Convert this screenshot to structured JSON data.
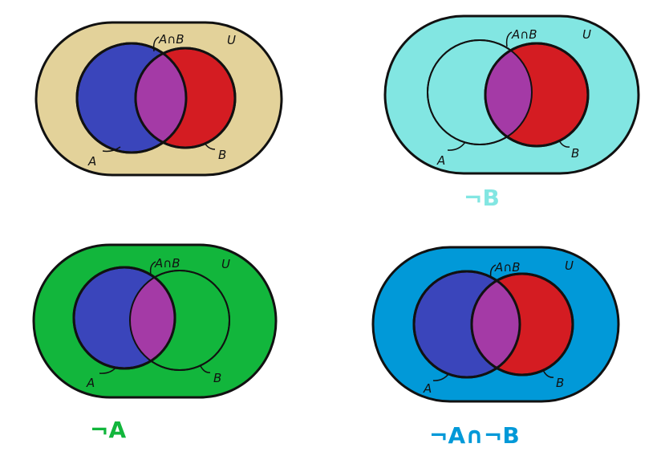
{
  "colors": {
    "universe_1": "#e3d29a",
    "universe_2": "#82e6e2",
    "universe_3": "#12b63c",
    "universe_4": "#0199d8",
    "set_a": "#3a45bb",
    "set_b": "#d41c22",
    "intersection": "#a43aa6",
    "caption_2": "#82e6e2",
    "caption_3": "#12b63c",
    "caption_4": "#0199d8"
  },
  "diagrams": [
    {
      "universe_label": "U",
      "a_label": "A",
      "b_label": "B",
      "intersection_label": "A∩B",
      "caption": ""
    },
    {
      "universe_label": "U",
      "a_label": "A",
      "b_label": "B",
      "intersection_label": "A∩B",
      "caption": "¬B"
    },
    {
      "universe_label": "U",
      "a_label": "A",
      "b_label": "B",
      "intersection_label": "A∩B",
      "caption": "¬A"
    },
    {
      "universe_label": "U",
      "a_label": "A",
      "b_label": "B",
      "intersection_label": "A∩B",
      "caption": "¬A∩¬B"
    }
  ]
}
